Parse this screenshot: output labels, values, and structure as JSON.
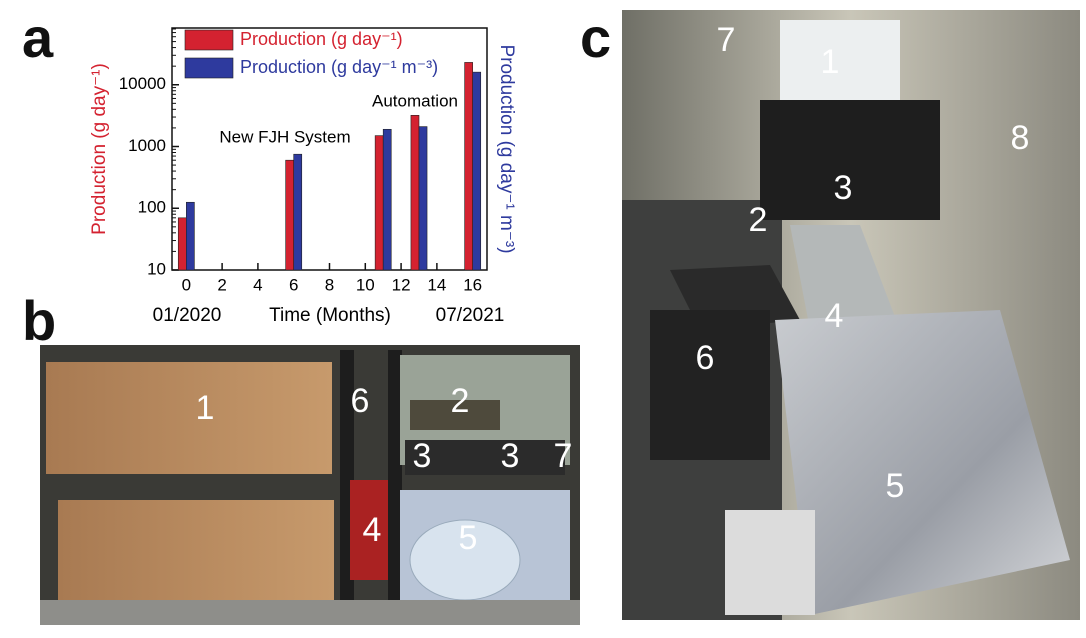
{
  "panel_labels": [
    "a",
    "b",
    "c"
  ],
  "chart_data": {
    "type": "bar",
    "log_y": true,
    "xlabel": "Time (Months)",
    "ylabel": "Production (g day⁻¹)",
    "y2label": "Production (g day⁻¹ m⁻³)",
    "x": [
      0,
      6,
      11,
      13,
      16
    ],
    "series": [
      {
        "name": "Production (g day⁻¹)",
        "color": "#d42230",
        "values": [
          70,
          600,
          1500,
          3200,
          23000
        ]
      },
      {
        "name": "Production (g day⁻¹ m⁻³)",
        "color": "#2e3a9e",
        "values": [
          125,
          750,
          1900,
          2100,
          16000
        ]
      }
    ],
    "xlim": [
      -0.8,
      16.8
    ],
    "xticks": [
      0,
      2,
      4,
      6,
      8,
      10,
      12,
      14,
      16
    ],
    "ylim": [
      10,
      83000
    ],
    "yticks": [
      10,
      100,
      1000,
      10000
    ],
    "annotations": [
      "New FJH System",
      "Automation",
      "01/2020",
      "07/2021"
    ]
  },
  "photo_b_labels": [
    "1",
    "2",
    "3",
    "3",
    "4",
    "5",
    "6",
    "7"
  ],
  "photo_c_labels": [
    "1",
    "2",
    "3",
    "4",
    "5",
    "6",
    "7",
    "8"
  ]
}
